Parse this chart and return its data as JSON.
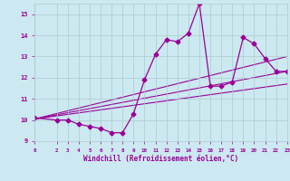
{
  "xlabel": "Windchill (Refroidissement éolien,°C)",
  "bg_color": "#cce8f0",
  "line_color": "#990099",
  "x_data": [
    0,
    2,
    3,
    4,
    5,
    6,
    7,
    8,
    9,
    10,
    11,
    12,
    13,
    14,
    15,
    16,
    17,
    18,
    19,
    20,
    21,
    22,
    23
  ],
  "y_data": [
    10.1,
    10.0,
    10.0,
    9.8,
    9.7,
    9.6,
    9.4,
    9.4,
    10.3,
    11.9,
    13.1,
    13.8,
    13.7,
    14.1,
    15.5,
    11.6,
    11.6,
    11.8,
    13.9,
    13.6,
    12.9,
    12.3,
    12.3
  ],
  "xlim": [
    0,
    23
  ],
  "ylim": [
    9,
    15.5
  ],
  "yticks": [
    9,
    10,
    11,
    12,
    13,
    14,
    15
  ],
  "xticks": [
    0,
    2,
    3,
    4,
    5,
    6,
    7,
    8,
    9,
    10,
    11,
    12,
    13,
    14,
    15,
    16,
    17,
    18,
    19,
    20,
    21,
    22,
    23
  ],
  "grid_color": "#aacccc",
  "trend_lines": [
    {
      "x0": 0,
      "y0": 10.05,
      "x1": 23,
      "y1": 12.3
    },
    {
      "x0": 0,
      "y0": 10.05,
      "x1": 23,
      "y1": 13.0
    },
    {
      "x0": 0,
      "y0": 10.05,
      "x1": 23,
      "y1": 11.7
    }
  ],
  "marker": "D",
  "marker_size": 2.5,
  "linewidth": 0.9
}
